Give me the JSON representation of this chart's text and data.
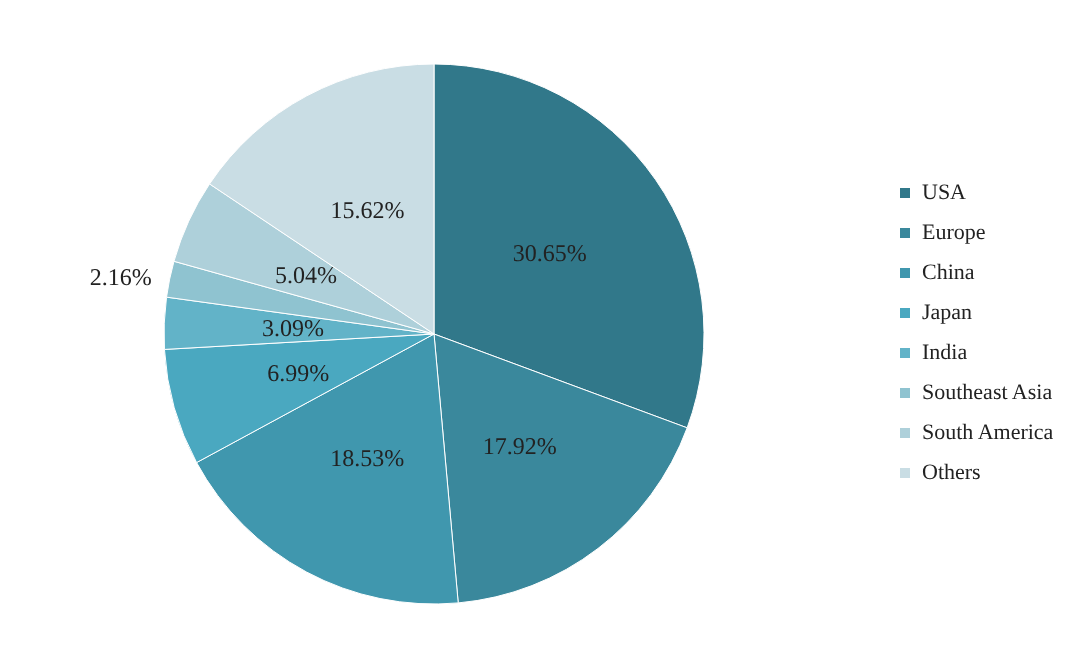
{
  "chart_data": {
    "type": "pie",
    "categories": [
      "USA",
      "Europe",
      "China",
      "Japan",
      "India",
      "Southeast Asia",
      "South America",
      "Others"
    ],
    "values": [
      30.65,
      17.92,
      18.53,
      6.99,
      3.09,
      2.16,
      5.04,
      15.62
    ],
    "colors": [
      "#31788a",
      "#3a889c",
      "#4097ae",
      "#4aa8c0",
      "#62b3c8",
      "#8fc3d0",
      "#aed0da",
      "#c9dde4"
    ],
    "value_labels": [
      "30.65%",
      "17.92%",
      "18.53%",
      "6.99%",
      "3.09%",
      "2.16%",
      "5.04%",
      "15.62%"
    ],
    "legend": "right"
  }
}
